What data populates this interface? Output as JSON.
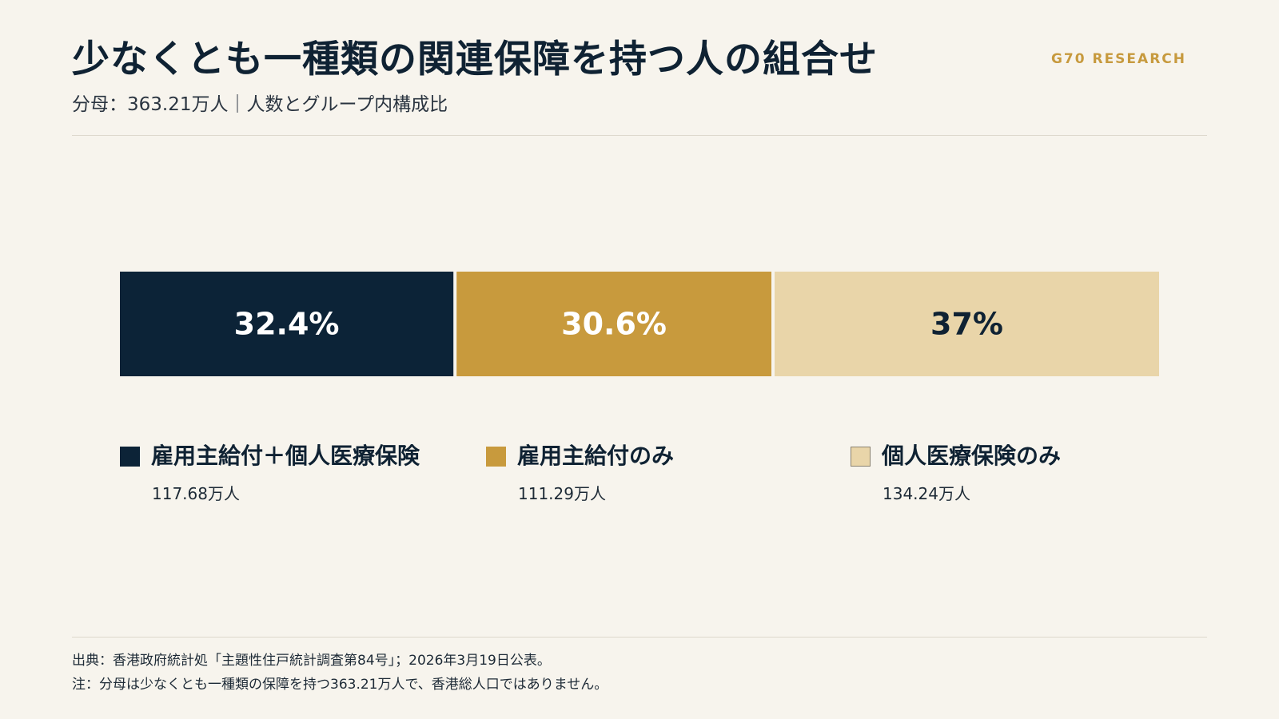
{
  "header": {
    "title": "少なくとも一種類の関連保障を持つ人の組合せ",
    "subtitle": "分母：363.21万人｜人数とグループ内構成比",
    "brand": "G70 RESEARCH"
  },
  "chart_data": {
    "type": "bar",
    "orientation": "horizontal-stacked-100",
    "title": "少なくとも一種類の関連保障を持つ人の組合せ",
    "subtitle": "分母：363.21万人｜人数とグループ内構成比",
    "total": 363.21,
    "unit": "万人",
    "legend_position": "bottom",
    "grid": false,
    "series": [
      {
        "name": "雇用主給付＋個人医療保険",
        "share": 32.4,
        "label": "32.4%",
        "count_label": "117.68万人",
        "color": "#0c2337",
        "text_color": "#ffffff"
      },
      {
        "name": "雇用主給付のみ",
        "share": 30.6,
        "label": "30.6%",
        "count_label": "111.29万人",
        "color": "#c89a3d",
        "text_color": "#ffffff"
      },
      {
        "name": "個人医療保険のみ",
        "share": 37,
        "label": "37%",
        "count_label": "134.24万人",
        "color": "#e9d5a9",
        "text_color": "#0f2233"
      }
    ]
  },
  "footer": {
    "source": "出典：香港政府統計処「主題性住戸統計調査第84号」；2026年3月19日公表。",
    "note": "注：分母は少なくとも一種類の保障を持つ363.21万人で、香港総人口ではありません。"
  }
}
